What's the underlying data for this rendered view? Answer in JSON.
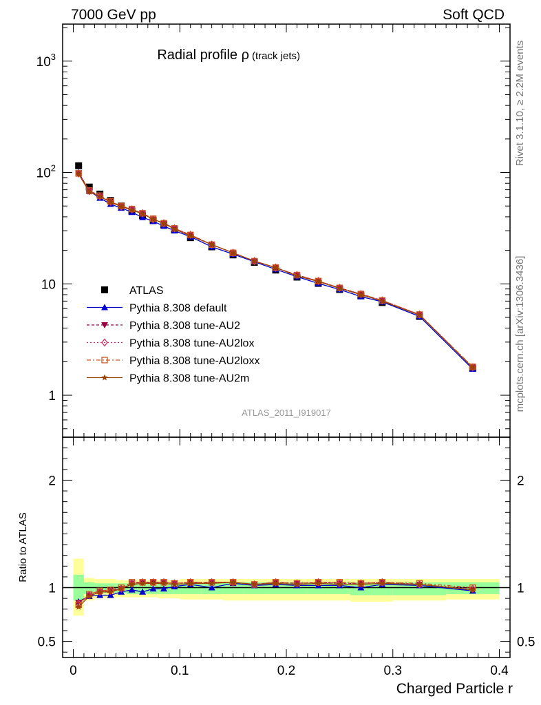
{
  "header": {
    "left": "7000 GeV pp",
    "right": "Soft QCD"
  },
  "side_labels": {
    "rivet": "Rivet 3.1.10, ≥ 2.2M events",
    "mcplots": "mcplots.cern.ch [arXiv:1306.3436]"
  },
  "chart_data": [
    {
      "type": "scatter",
      "title": "Radial profile ρ",
      "title_suffix": "(track jets)",
      "analysis_tag": "ATLAS_2011_I919017",
      "xlabel": "Charged Particle r",
      "ylabel": "",
      "xlim": [
        -0.01,
        0.41
      ],
      "ylim": [
        0.42,
        2150
      ],
      "yscale": "log",
      "yticks": [
        1,
        10,
        100,
        1000
      ],
      "ytick_labels": [
        "1",
        "10",
        "10^2",
        "10^3"
      ],
      "legend_position": "center-left",
      "x": [
        0.005,
        0.015,
        0.025,
        0.035,
        0.045,
        0.055,
        0.065,
        0.075,
        0.085,
        0.095,
        0.11,
        0.13,
        0.15,
        0.17,
        0.19,
        0.21,
        0.23,
        0.25,
        0.27,
        0.29,
        0.325,
        0.375
      ],
      "series": [
        {
          "name": "ATLAS",
          "color": "#000000",
          "marker": "square",
          "values": [
            115,
            74,
            64,
            56,
            50,
            45,
            41,
            37,
            34,
            30.5,
            26,
            21.5,
            18.2,
            15.6,
            13.3,
            11.5,
            10.1,
            8.9,
            7.8,
            6.8,
            5.1,
            1.75
          ]
        },
        {
          "name": "Pythia 8.308 default",
          "color": "#0000cc",
          "marker": "triangle-up",
          "dash": "solid",
          "values": [
            100,
            68,
            59,
            52,
            48,
            44,
            39.5,
            36.5,
            33,
            30,
            26.5,
            21.5,
            18.5,
            15.8,
            13.5,
            11.6,
            10.1,
            8.9,
            7.7,
            6.9,
            5.1,
            1.72
          ]
        },
        {
          "name": "Pythia 8.308 tune-AU2",
          "color": "#990044",
          "marker": "triangle-down",
          "dash": "4,3",
          "values": [
            99,
            69,
            61,
            54,
            49.5,
            46.5,
            43,
            38,
            35,
            31.5,
            27.5,
            22.5,
            19,
            16,
            14,
            12,
            10.6,
            9.2,
            8.1,
            7.1,
            5.3,
            1.78
          ]
        },
        {
          "name": "Pythia 8.308 tune-AU2lox",
          "color": "#cc3366",
          "marker": "diamond-open",
          "dash": "2,3",
          "values": [
            98,
            68,
            61,
            54.5,
            49.5,
            46.5,
            43,
            38,
            35,
            31.5,
            27.5,
            22.5,
            19,
            16,
            14,
            12,
            10.6,
            9.2,
            8.1,
            7.1,
            5.3,
            1.78
          ]
        },
        {
          "name": "Pythia 8.308 tune-AU2loxx",
          "color": "#cc5522",
          "marker": "square-open",
          "dash": "6,3,2,3",
          "values": [
            98,
            69,
            62,
            55,
            50,
            47,
            43,
            38.5,
            35,
            31.5,
            27.5,
            22.5,
            19,
            16,
            14,
            12,
            10.6,
            9.2,
            8.1,
            7.1,
            5.3,
            1.8
          ]
        },
        {
          "name": "Pythia 8.308 tune-AU2m",
          "color": "#994400",
          "marker": "star",
          "dash": "solid",
          "values": [
            97,
            67,
            61,
            54,
            49.5,
            46,
            42.5,
            38,
            35,
            31,
            27,
            22.5,
            19,
            16,
            14,
            11.8,
            10.5,
            9.1,
            8,
            7,
            5.25,
            1.77
          ]
        }
      ]
    },
    {
      "type": "scatter",
      "title": "",
      "xlabel": "Charged Particle r",
      "ylabel": "Ratio to ATLAS",
      "xlim": [
        -0.01,
        0.41
      ],
      "ylim": [
        0.35,
        2.4
      ],
      "xticks": [
        0,
        0.1,
        0.2,
        0.3,
        0.4
      ],
      "xtick_labels": [
        "0",
        "0.1",
        "0.2",
        "0.3",
        "0.4"
      ],
      "yticks": [
        0.5,
        1,
        2
      ],
      "ytick_labels": [
        "0.5",
        "1",
        "2"
      ],
      "reference_line": 1,
      "band_edges": [
        0,
        0.01,
        0.02,
        0.03,
        0.04,
        0.05,
        0.06,
        0.07,
        0.08,
        0.09,
        0.1,
        0.12,
        0.14,
        0.16,
        0.18,
        0.2,
        0.22,
        0.24,
        0.26,
        0.28,
        0.3,
        0.35,
        0.4
      ],
      "band_outer": [
        [
          0.74,
          1.27
        ],
        [
          0.88,
          1.09
        ],
        [
          0.9,
          1.08
        ],
        [
          0.9,
          1.08
        ],
        [
          0.91,
          1.07
        ],
        [
          0.91,
          1.07
        ],
        [
          0.91,
          1.07
        ],
        [
          0.91,
          1.07
        ],
        [
          0.9,
          1.07
        ],
        [
          0.9,
          1.07
        ],
        [
          0.89,
          1.08
        ],
        [
          0.89,
          1.08
        ],
        [
          0.88,
          1.08
        ],
        [
          0.88,
          1.08
        ],
        [
          0.88,
          1.08
        ],
        [
          0.88,
          1.08
        ],
        [
          0.88,
          1.08
        ],
        [
          0.88,
          1.08
        ],
        [
          0.87,
          1.08
        ],
        [
          0.87,
          1.08
        ],
        [
          0.88,
          1.08
        ],
        [
          0.89,
          1.08
        ]
      ],
      "band_inner": [
        [
          0.88,
          1.12
        ],
        [
          0.94,
          1.05
        ],
        [
          0.95,
          1.04
        ],
        [
          0.95,
          1.04
        ],
        [
          0.95,
          1.04
        ],
        [
          0.94,
          1.04
        ],
        [
          0.94,
          1.04
        ],
        [
          0.94,
          1.04
        ],
        [
          0.94,
          1.04
        ],
        [
          0.94,
          1.04
        ],
        [
          0.94,
          1.04
        ],
        [
          0.94,
          1.04
        ],
        [
          0.94,
          1.05
        ],
        [
          0.94,
          1.05
        ],
        [
          0.94,
          1.05
        ],
        [
          0.94,
          1.05
        ],
        [
          0.94,
          1.05
        ],
        [
          0.94,
          1.05
        ],
        [
          0.93,
          1.05
        ],
        [
          0.93,
          1.05
        ],
        [
          0.93,
          1.05
        ],
        [
          0.94,
          1.05
        ]
      ],
      "band_colors": {
        "outer": "#ffff99",
        "inner": "#99ff99"
      },
      "series": [
        {
          "name": "Pythia 8.308 default",
          "values": [
            0.87,
            0.92,
            0.93,
            0.93,
            0.96,
            0.98,
            0.96,
            0.99,
            0.99,
            1.01,
            1.03,
            1.0,
            1.04,
            1.02,
            1.03,
            1.02,
            1.02,
            1.02,
            1.0,
            1.03,
            1.02,
            0.97
          ]
        },
        {
          "name": "Pythia 8.308 tune-AU2",
          "values": [
            0.86,
            0.93,
            0.96,
            0.97,
            0.99,
            1.04,
            1.05,
            1.05,
            1.05,
            1.04,
            1.05,
            1.05,
            1.05,
            1.03,
            1.05,
            1.04,
            1.05,
            1.04,
            1.04,
            1.05,
            1.03,
            0.98
          ]
        },
        {
          "name": "Pythia 8.308 tune-AU2lox",
          "values": [
            0.85,
            0.93,
            0.96,
            0.97,
            0.99,
            1.04,
            1.05,
            1.05,
            1.05,
            1.04,
            1.05,
            1.05,
            1.05,
            1.03,
            1.05,
            1.04,
            1.05,
            1.04,
            1.04,
            1.05,
            1.03,
            0.99
          ]
        },
        {
          "name": "Pythia 8.308 tune-AU2loxx",
          "values": [
            0.84,
            0.94,
            0.97,
            0.98,
            1.0,
            1.05,
            1.05,
            1.05,
            1.05,
            1.04,
            1.05,
            1.05,
            1.05,
            1.03,
            1.05,
            1.04,
            1.05,
            1.05,
            1.04,
            1.05,
            1.04,
            1.0
          ]
        },
        {
          "name": "Pythia 8.308 tune-AU2m",
          "values": [
            0.82,
            0.92,
            0.96,
            0.96,
            0.99,
            1.03,
            1.04,
            1.04,
            1.04,
            1.03,
            1.04,
            1.04,
            1.05,
            1.03,
            1.04,
            1.03,
            1.04,
            1.03,
            1.03,
            1.04,
            1.03,
            0.98
          ]
        }
      ]
    }
  ]
}
